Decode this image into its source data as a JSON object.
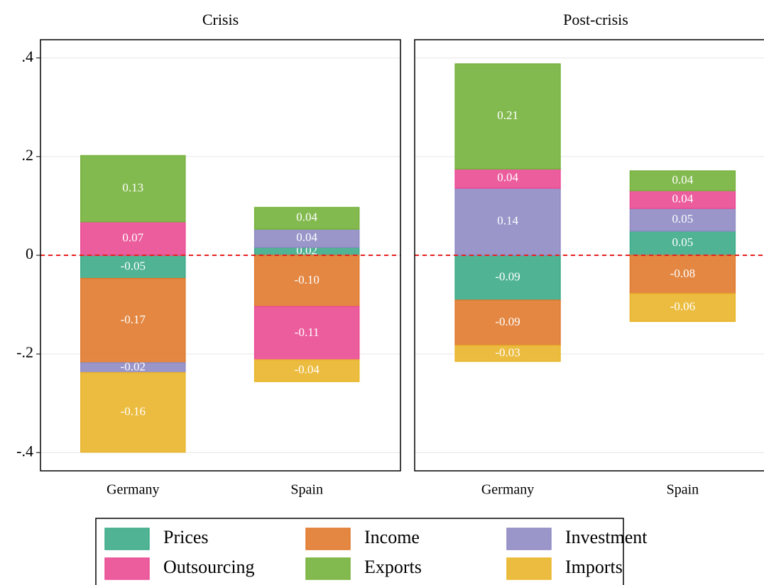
{
  "chart_data": [
    {
      "type": "stacked-bar",
      "title": "Crisis",
      "categories": [
        "Germany",
        "Spain"
      ],
      "ylim": [
        -0.437,
        0.437
      ],
      "yticks": [
        {
          "value": -0.4,
          "label": "-.4"
        },
        {
          "value": -0.2,
          "label": "-.2"
        },
        0,
        {
          "value": 0.2,
          "label": ".2"
        },
        {
          "value": 0.4,
          "label": ".4"
        }
      ],
      "grid": true,
      "reference_line": 0,
      "series": [
        {
          "name": "Prices",
          "color": "#3cab88",
          "values": [
            -0.047,
            0.016
          ],
          "value_labels": [
            "-0.05",
            "0.02"
          ]
        },
        {
          "name": "Income",
          "color": "#e07a2e",
          "values": [
            -0.171,
            -0.104
          ],
          "value_labels": [
            "-0.17",
            "-0.10"
          ]
        },
        {
          "name": "Investment",
          "color": "#8f8bc4",
          "values": [
            -0.02,
            0.037
          ],
          "value_labels": [
            "-0.02",
            "0.04"
          ]
        },
        {
          "name": "Outsourcing",
          "color": "#ea4b94",
          "values": [
            0.068,
            -0.108
          ],
          "value_labels": [
            "0.07",
            "-0.11"
          ]
        },
        {
          "name": "Exports",
          "color": "#76b23c",
          "values": [
            0.134,
            0.044
          ],
          "value_labels": [
            "0.13",
            "0.04"
          ]
        },
        {
          "name": "Imports",
          "color": "#e9b52a",
          "values": [
            -0.161,
            -0.044
          ],
          "value_labels": [
            "-0.16",
            "-0.04"
          ]
        }
      ]
    },
    {
      "type": "stacked-bar",
      "title": "Post-crisis",
      "categories": [
        "Germany",
        "Spain"
      ],
      "ylim": [
        -0.437,
        0.437
      ],
      "yticks": [
        -0.4,
        -0.2,
        0,
        0.2,
        0.4
      ],
      "grid": true,
      "reference_line": 0,
      "series": [
        {
          "name": "Prices",
          "color": "#3cab88",
          "values": [
            -0.091,
            0.049
          ],
          "value_labels": [
            "-0.09",
            "0.05"
          ]
        },
        {
          "name": "Income",
          "color": "#e07a2e",
          "values": [
            -0.092,
            -0.078
          ],
          "value_labels": [
            "-0.09",
            "-0.08"
          ]
        },
        {
          "name": "Investment",
          "color": "#8f8bc4",
          "values": [
            0.136,
            0.046
          ],
          "value_labels": [
            "0.14",
            "0.05"
          ]
        },
        {
          "name": "Outsourcing",
          "color": "#ea4b94",
          "values": [
            0.039,
            0.036
          ],
          "value_labels": [
            "0.04",
            "0.04"
          ]
        },
        {
          "name": "Exports",
          "color": "#76b23c",
          "values": [
            0.213,
            0.04
          ],
          "value_labels": [
            "0.21",
            "0.04"
          ]
        },
        {
          "name": "Imports",
          "color": "#e9b52a",
          "values": [
            -0.032,
            -0.056
          ],
          "value_labels": [
            "-0.03",
            "-0.06"
          ]
        }
      ]
    }
  ]
}
